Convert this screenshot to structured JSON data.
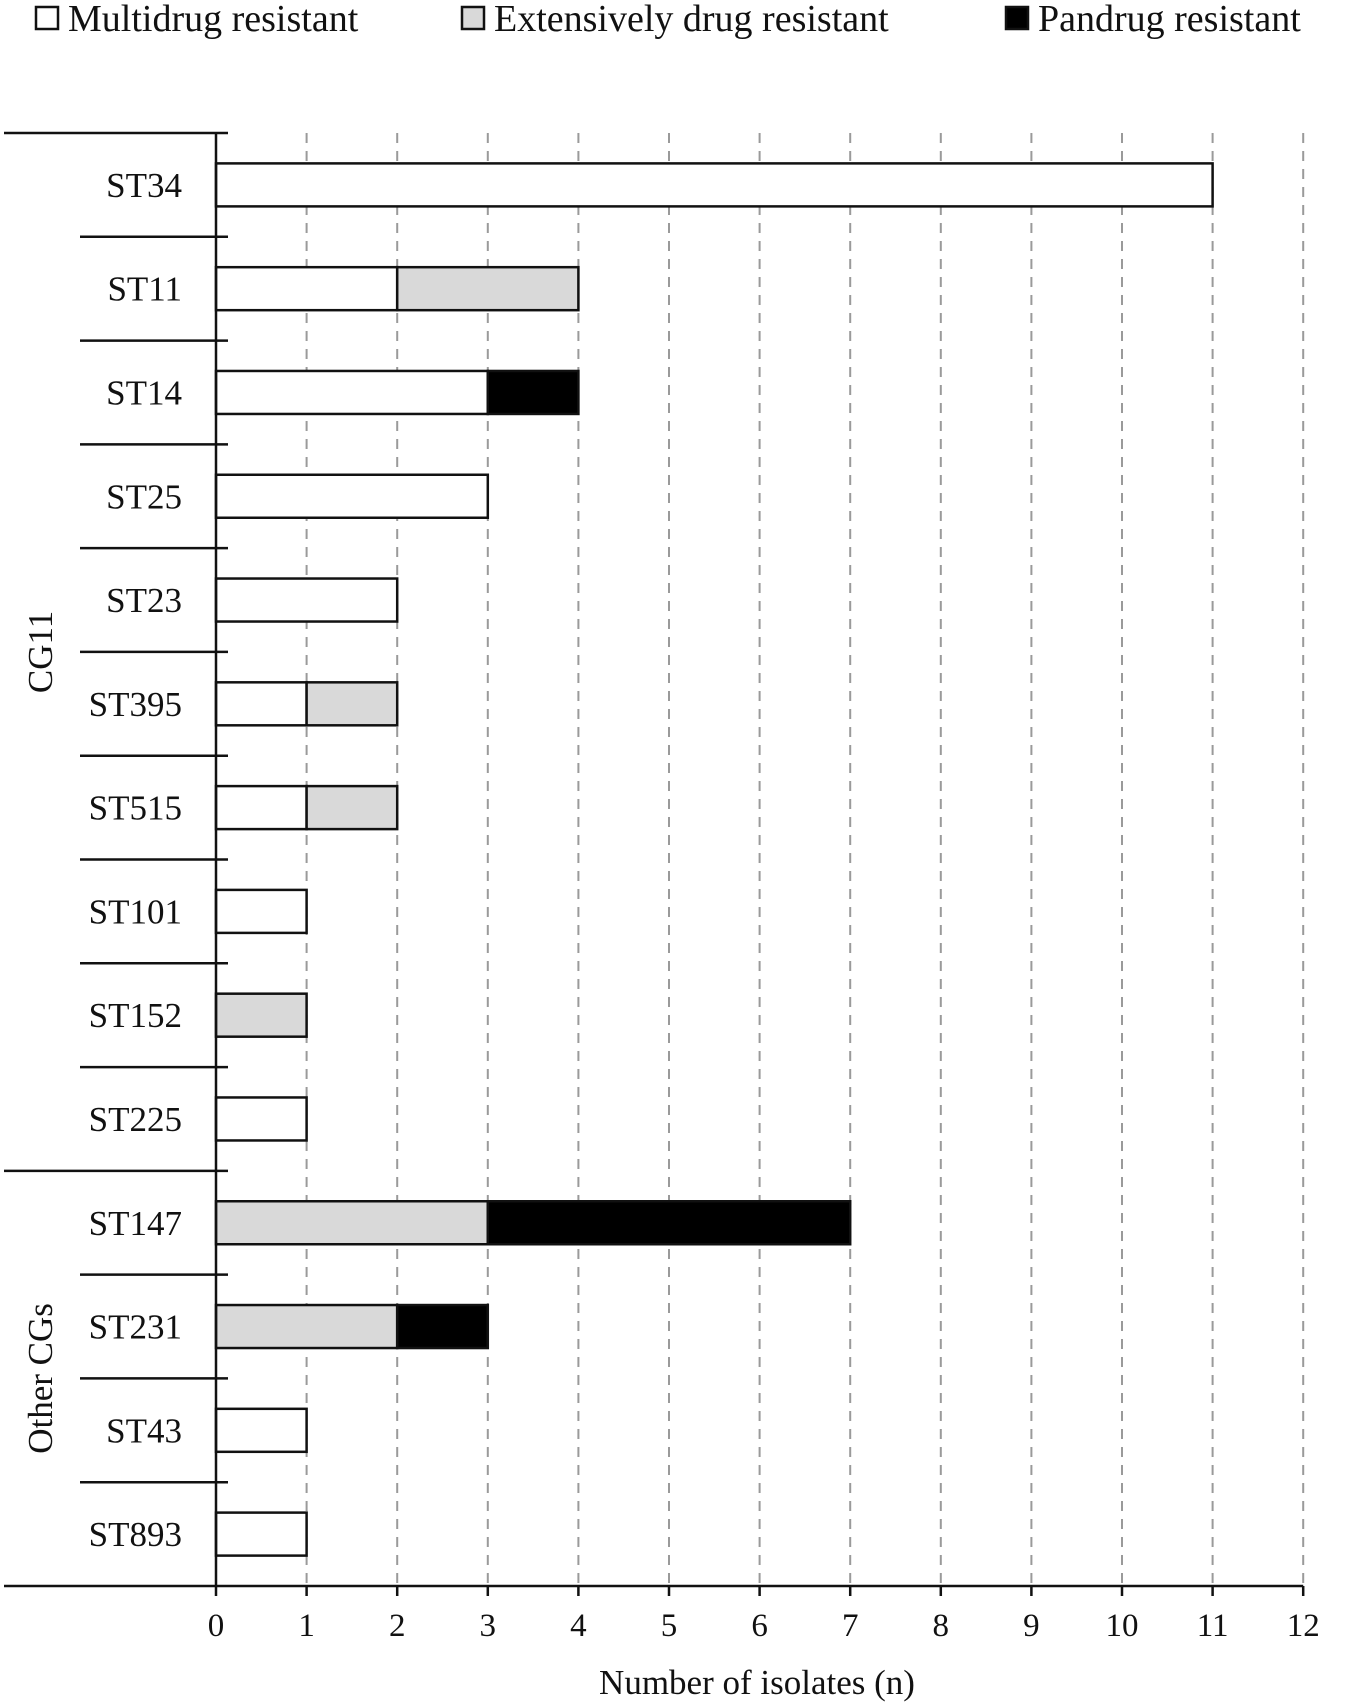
{
  "chart_data": {
    "type": "bar",
    "orientation": "horizontal",
    "stacked": true,
    "categories": [
      "ST34",
      "ST11",
      "ST14",
      "ST25",
      "ST23",
      "ST395",
      "ST515",
      "ST101",
      "ST152",
      "ST225",
      "ST147",
      "ST231",
      "ST43",
      "ST893"
    ],
    "groups": [
      {
        "label": "CG11",
        "categories": [
          "ST34",
          "ST11",
          "ST14",
          "ST25",
          "ST23",
          "ST395",
          "ST515",
          "ST101",
          "ST152",
          "ST225"
        ]
      },
      {
        "label": "Other CGs",
        "categories": [
          "ST147",
          "ST231",
          "ST43",
          "ST893"
        ]
      }
    ],
    "series": [
      {
        "name": "Multidrug resistant",
        "color": "#ffffff",
        "values": [
          11,
          2,
          3,
          3,
          2,
          1,
          1,
          1,
          0,
          1,
          0,
          0,
          1,
          1
        ]
      },
      {
        "name": "Extensively drug resistant",
        "color": "#d9d9d9",
        "values": [
          0,
          2,
          0,
          0,
          0,
          1,
          1,
          0,
          1,
          0,
          3,
          2,
          0,
          0
        ]
      },
      {
        "name": "Pandrug resistant",
        "color": "#000000",
        "values": [
          0,
          0,
          1,
          0,
          0,
          0,
          0,
          0,
          0,
          0,
          4,
          1,
          0,
          0
        ]
      }
    ],
    "xlabel": "Number of isolates (n)",
    "ylabel": "",
    "xlim": [
      0,
      12
    ],
    "xticks": [
      "0",
      "1",
      "2",
      "3",
      "4",
      "5",
      "6",
      "7",
      "8",
      "9",
      "10",
      "11",
      "12"
    ],
    "grid": "vertical-dashed",
    "legend_position": "top"
  }
}
